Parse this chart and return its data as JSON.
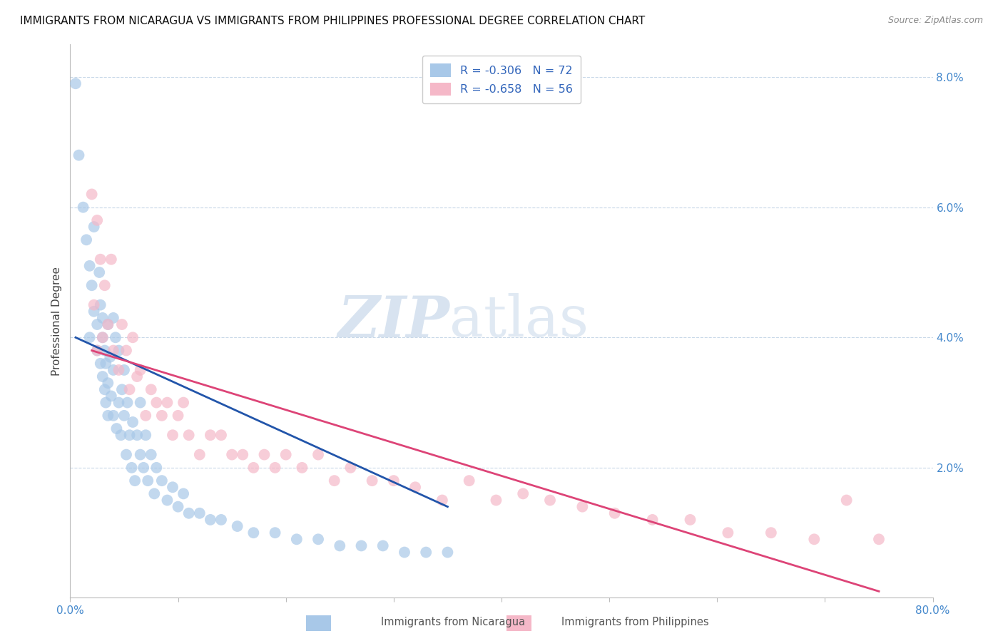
{
  "title": "IMMIGRANTS FROM NICARAGUA VS IMMIGRANTS FROM PHILIPPINES PROFESSIONAL DEGREE CORRELATION CHART",
  "source": "Source: ZipAtlas.com",
  "ylabel": "Professional Degree",
  "legend_1": "R = -0.306   N = 72",
  "legend_2": "R = -0.658   N = 56",
  "color_nicaragua": "#a8c8e8",
  "color_philippines": "#f5b8c8",
  "line_color_nicaragua": "#2255aa",
  "line_color_philippines": "#dd4477",
  "watermark_zip": "ZIP",
  "watermark_atlas": "atlas",
  "xlim": [
    0.0,
    0.8
  ],
  "ylim": [
    0.0,
    0.085
  ],
  "ytick_vals": [
    0.0,
    0.02,
    0.04,
    0.06,
    0.08
  ],
  "ytick_labels": [
    "",
    "2.0%",
    "4.0%",
    "6.0%",
    "8.0%"
  ],
  "xtick_vals": [
    0.0,
    0.1,
    0.2,
    0.3,
    0.4,
    0.5,
    0.6,
    0.7,
    0.8
  ],
  "xtick_labels": [
    "0.0%",
    "",
    "",
    "",
    "",
    "",
    "",
    "",
    "80.0%"
  ],
  "nicaragua_x": [
    0.005,
    0.008,
    0.012,
    0.015,
    0.018,
    0.018,
    0.02,
    0.022,
    0.022,
    0.025,
    0.025,
    0.027,
    0.028,
    0.028,
    0.03,
    0.03,
    0.03,
    0.032,
    0.032,
    0.033,
    0.033,
    0.035,
    0.035,
    0.035,
    0.037,
    0.038,
    0.04,
    0.04,
    0.04,
    0.042,
    0.043,
    0.045,
    0.045,
    0.047,
    0.048,
    0.05,
    0.05,
    0.052,
    0.053,
    0.055,
    0.057,
    0.058,
    0.06,
    0.062,
    0.065,
    0.065,
    0.068,
    0.07,
    0.072,
    0.075,
    0.078,
    0.08,
    0.085,
    0.09,
    0.095,
    0.1,
    0.105,
    0.11,
    0.12,
    0.13,
    0.14,
    0.155,
    0.17,
    0.19,
    0.21,
    0.23,
    0.25,
    0.27,
    0.29,
    0.31,
    0.33,
    0.35
  ],
  "nicaragua_y": [
    0.079,
    0.068,
    0.06,
    0.055,
    0.051,
    0.04,
    0.048,
    0.044,
    0.057,
    0.042,
    0.038,
    0.05,
    0.036,
    0.045,
    0.034,
    0.04,
    0.043,
    0.038,
    0.032,
    0.036,
    0.03,
    0.033,
    0.042,
    0.028,
    0.037,
    0.031,
    0.043,
    0.035,
    0.028,
    0.04,
    0.026,
    0.03,
    0.038,
    0.025,
    0.032,
    0.028,
    0.035,
    0.022,
    0.03,
    0.025,
    0.02,
    0.027,
    0.018,
    0.025,
    0.022,
    0.03,
    0.02,
    0.025,
    0.018,
    0.022,
    0.016,
    0.02,
    0.018,
    0.015,
    0.017,
    0.014,
    0.016,
    0.013,
    0.013,
    0.012,
    0.012,
    0.011,
    0.01,
    0.01,
    0.009,
    0.009,
    0.008,
    0.008,
    0.008,
    0.007,
    0.007,
    0.007
  ],
  "philippines_x": [
    0.02,
    0.022,
    0.025,
    0.025,
    0.028,
    0.03,
    0.032,
    0.035,
    0.038,
    0.04,
    0.045,
    0.048,
    0.052,
    0.055,
    0.058,
    0.062,
    0.065,
    0.07,
    0.075,
    0.08,
    0.085,
    0.09,
    0.095,
    0.1,
    0.105,
    0.11,
    0.12,
    0.13,
    0.14,
    0.15,
    0.16,
    0.17,
    0.18,
    0.19,
    0.2,
    0.215,
    0.23,
    0.245,
    0.26,
    0.28,
    0.3,
    0.32,
    0.345,
    0.37,
    0.395,
    0.42,
    0.445,
    0.475,
    0.505,
    0.54,
    0.575,
    0.61,
    0.65,
    0.69,
    0.72,
    0.75
  ],
  "philippines_y": [
    0.062,
    0.045,
    0.058,
    0.038,
    0.052,
    0.04,
    0.048,
    0.042,
    0.052,
    0.038,
    0.035,
    0.042,
    0.038,
    0.032,
    0.04,
    0.034,
    0.035,
    0.028,
    0.032,
    0.03,
    0.028,
    0.03,
    0.025,
    0.028,
    0.03,
    0.025,
    0.022,
    0.025,
    0.025,
    0.022,
    0.022,
    0.02,
    0.022,
    0.02,
    0.022,
    0.02,
    0.022,
    0.018,
    0.02,
    0.018,
    0.018,
    0.017,
    0.015,
    0.018,
    0.015,
    0.016,
    0.015,
    0.014,
    0.013,
    0.012,
    0.012,
    0.01,
    0.01,
    0.009,
    0.015,
    0.009
  ],
  "legend_label_nicaragua": "Immigrants from Nicaragua",
  "legend_label_philippines": "Immigrants from Philippines",
  "nic_line_x": [
    0.005,
    0.35
  ],
  "nic_line_y": [
    0.04,
    0.014
  ],
  "phi_line_x": [
    0.02,
    0.75
  ],
  "phi_line_y": [
    0.038,
    0.001
  ]
}
